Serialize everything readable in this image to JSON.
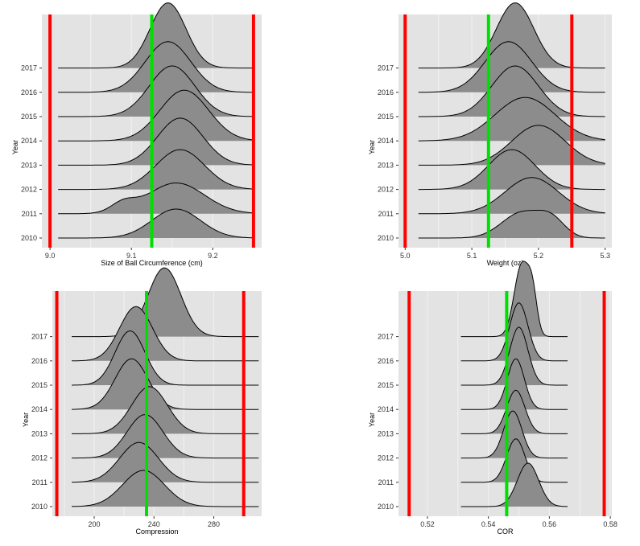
{
  "chart_data": [
    {
      "type": "ridgeline",
      "xlabel": "Size of Ball Circumference (cm)",
      "ylabel": "Year",
      "years": [
        "2010",
        "2011",
        "2012",
        "2013",
        "2014",
        "2015",
        "2016",
        "2017"
      ],
      "xlim": [
        8.99,
        9.26
      ],
      "xticks": [
        {
          "value": 9.0,
          "label": "9.0"
        },
        {
          "value": 9.1,
          "label": "9.1"
        },
        {
          "value": 9.2,
          "label": "9.2"
        }
      ],
      "spec_limits": [
        9.0,
        9.25
      ],
      "target": 9.125,
      "series": [
        {
          "year": "2010",
          "x_range": [
            9.01,
            9.25
          ],
          "peaks": [
            {
              "center": 9.155,
              "sigma": 0.03,
              "height": 0.8
            }
          ]
        },
        {
          "year": "2011",
          "x_range": [
            9.01,
            9.25
          ],
          "peaks": [
            {
              "center": 9.155,
              "sigma": 0.035,
              "height": 0.85
            },
            {
              "center": 9.09,
              "sigma": 0.015,
              "height": 0.25
            }
          ]
        },
        {
          "year": "2012",
          "x_range": [
            9.01,
            9.25
          ],
          "peaks": [
            {
              "center": 9.16,
              "sigma": 0.03,
              "height": 1.1
            }
          ]
        },
        {
          "year": "2013",
          "x_range": [
            9.01,
            9.25
          ],
          "peaks": [
            {
              "center": 9.16,
              "sigma": 0.028,
              "height": 1.3
            }
          ]
        },
        {
          "year": "2014",
          "x_range": [
            9.01,
            9.25
          ],
          "peaks": [
            {
              "center": 9.165,
              "sigma": 0.03,
              "height": 1.4
            }
          ]
        },
        {
          "year": "2015",
          "x_range": [
            9.01,
            9.25
          ],
          "peaks": [
            {
              "center": 9.15,
              "sigma": 0.028,
              "height": 1.4
            }
          ]
        },
        {
          "year": "2016",
          "x_range": [
            9.01,
            9.25
          ],
          "peaks": [
            {
              "center": 9.145,
              "sigma": 0.028,
              "height": 1.4
            }
          ]
        },
        {
          "year": "2017",
          "x_range": [
            9.01,
            9.25
          ],
          "peaks": [
            {
              "center": 9.145,
              "sigma": 0.022,
              "height": 1.8
            }
          ]
        }
      ]
    },
    {
      "type": "ridgeline",
      "xlabel": "Weight (oz)",
      "ylabel": "Year",
      "years": [
        "2010",
        "2011",
        "2012",
        "2013",
        "2014",
        "2015",
        "2016",
        "2017"
      ],
      "xlim": [
        4.99,
        5.31
      ],
      "xticks": [
        {
          "value": 5.0,
          "label": "5.0"
        },
        {
          "value": 5.1,
          "label": "5.1"
        },
        {
          "value": 5.2,
          "label": "5.2"
        },
        {
          "value": 5.3,
          "label": "5.3"
        }
      ],
      "spec_limits": [
        5.0,
        5.25
      ],
      "target": 5.125,
      "series": [
        {
          "year": "2010",
          "x_range": [
            5.02,
            5.3
          ],
          "peaks": [
            {
              "center": 5.175,
              "sigma": 0.03,
              "height": 0.7
            },
            {
              "center": 5.22,
              "sigma": 0.02,
              "height": 0.45
            }
          ]
        },
        {
          "year": "2011",
          "x_range": [
            5.02,
            5.3
          ],
          "peaks": [
            {
              "center": 5.19,
              "sigma": 0.04,
              "height": 1.0
            }
          ]
        },
        {
          "year": "2012",
          "x_range": [
            5.02,
            5.3
          ],
          "peaks": [
            {
              "center": 5.16,
              "sigma": 0.035,
              "height": 1.1
            }
          ]
        },
        {
          "year": "2013",
          "x_range": [
            5.02,
            5.3
          ],
          "peaks": [
            {
              "center": 5.2,
              "sigma": 0.04,
              "height": 1.1
            }
          ]
        },
        {
          "year": "2014",
          "x_range": [
            5.02,
            5.3
          ],
          "peaks": [
            {
              "center": 5.18,
              "sigma": 0.045,
              "height": 1.2
            }
          ]
        },
        {
          "year": "2015",
          "x_range": [
            5.02,
            5.3
          ],
          "peaks": [
            {
              "center": 5.165,
              "sigma": 0.035,
              "height": 1.4
            }
          ]
        },
        {
          "year": "2016",
          "x_range": [
            5.02,
            5.3
          ],
          "peaks": [
            {
              "center": 5.155,
              "sigma": 0.035,
              "height": 1.4
            }
          ]
        },
        {
          "year": "2017",
          "x_range": [
            5.02,
            5.3
          ],
          "peaks": [
            {
              "center": 5.165,
              "sigma": 0.028,
              "height": 1.8
            }
          ]
        }
      ]
    },
    {
      "type": "ridgeline",
      "xlabel": "Compression",
      "ylabel": "Year",
      "years": [
        "2010",
        "2011",
        "2012",
        "2013",
        "2014",
        "2015",
        "2016",
        "2017"
      ],
      "xlim": [
        172,
        312
      ],
      "xticks": [
        {
          "value": 200,
          "label": "200"
        },
        {
          "value": 240,
          "label": "240"
        },
        {
          "value": 280,
          "label": "280"
        }
      ],
      "spec_limits": [
        175,
        300
      ],
      "target": 235,
      "series": [
        {
          "year": "2010",
          "x_range": [
            185,
            310
          ],
          "peaks": [
            {
              "center": 233,
              "sigma": 14,
              "height": 1.0
            }
          ]
        },
        {
          "year": "2011",
          "x_range": [
            185,
            310
          ],
          "peaks": [
            {
              "center": 230,
              "sigma": 13,
              "height": 1.1
            }
          ]
        },
        {
          "year": "2012",
          "x_range": [
            185,
            310
          ],
          "peaks": [
            {
              "center": 234,
              "sigma": 12,
              "height": 1.2
            }
          ]
        },
        {
          "year": "2013",
          "x_range": [
            185,
            310
          ],
          "peaks": [
            {
              "center": 237,
              "sigma": 12,
              "height": 1.3
            }
          ]
        },
        {
          "year": "2014",
          "x_range": [
            185,
            310
          ],
          "peaks": [
            {
              "center": 225,
              "sigma": 11,
              "height": 1.4
            }
          ]
        },
        {
          "year": "2015",
          "x_range": [
            185,
            310
          ],
          "peaks": [
            {
              "center": 224,
              "sigma": 10,
              "height": 1.5
            }
          ]
        },
        {
          "year": "2016",
          "x_range": [
            185,
            310
          ],
          "peaks": [
            {
              "center": 228,
              "sigma": 11,
              "height": 1.5
            }
          ]
        },
        {
          "year": "2017",
          "x_range": [
            185,
            310
          ],
          "peaks": [
            {
              "center": 247,
              "sigma": 11,
              "height": 1.9
            }
          ]
        }
      ]
    },
    {
      "type": "ridgeline",
      "xlabel": "COR",
      "ylabel": "Year",
      "years": [
        "2010",
        "2011",
        "2012",
        "2013",
        "2014",
        "2015",
        "2016",
        "2017"
      ],
      "xlim": [
        0.5105,
        0.5805
      ],
      "xticks": [
        {
          "value": 0.52,
          "label": "0.52"
        },
        {
          "value": 0.54,
          "label": "0.54"
        },
        {
          "value": 0.56,
          "label": "0.56"
        },
        {
          "value": 0.58,
          "label": "0.58"
        }
      ],
      "spec_limits": [
        0.514,
        0.578
      ],
      "target": 0.546,
      "series": [
        {
          "year": "2010",
          "x_range": [
            0.531,
            0.566
          ],
          "peaks": [
            {
              "center": 0.553,
              "sigma": 0.0035,
              "height": 1.2
            }
          ]
        },
        {
          "year": "2011",
          "x_range": [
            0.531,
            0.566
          ],
          "peaks": [
            {
              "center": 0.549,
              "sigma": 0.003,
              "height": 1.2
            }
          ]
        },
        {
          "year": "2012",
          "x_range": [
            0.531,
            0.566
          ],
          "peaks": [
            {
              "center": 0.548,
              "sigma": 0.003,
              "height": 1.3
            }
          ]
        },
        {
          "year": "2013",
          "x_range": [
            0.531,
            0.566
          ],
          "peaks": [
            {
              "center": 0.549,
              "sigma": 0.003,
              "height": 1.2
            }
          ]
        },
        {
          "year": "2014",
          "x_range": [
            0.531,
            0.566
          ],
          "peaks": [
            {
              "center": 0.549,
              "sigma": 0.0028,
              "height": 1.4
            }
          ]
        },
        {
          "year": "2015",
          "x_range": [
            0.531,
            0.566
          ],
          "peaks": [
            {
              "center": 0.55,
              "sigma": 0.003,
              "height": 1.6
            }
          ]
        },
        {
          "year": "2016",
          "x_range": [
            0.531,
            0.566
          ],
          "peaks": [
            {
              "center": 0.55,
              "sigma": 0.003,
              "height": 1.6
            }
          ]
        },
        {
          "year": "2017",
          "x_range": [
            0.531,
            0.566
          ],
          "peaks": [
            {
              "center": 0.551,
              "sigma": 0.0025,
              "height": 2.0
            },
            {
              "center": 0.5545,
              "sigma": 0.0015,
              "height": 0.9
            }
          ]
        }
      ]
    }
  ],
  "colors": {
    "panel_background": "#e3e3e3",
    "gridline": "#f2f2f2",
    "density_fill": "#8c8c8c",
    "density_line": "#000000",
    "spec_limit_line": "#ff0000",
    "target_line": "#00e000"
  }
}
